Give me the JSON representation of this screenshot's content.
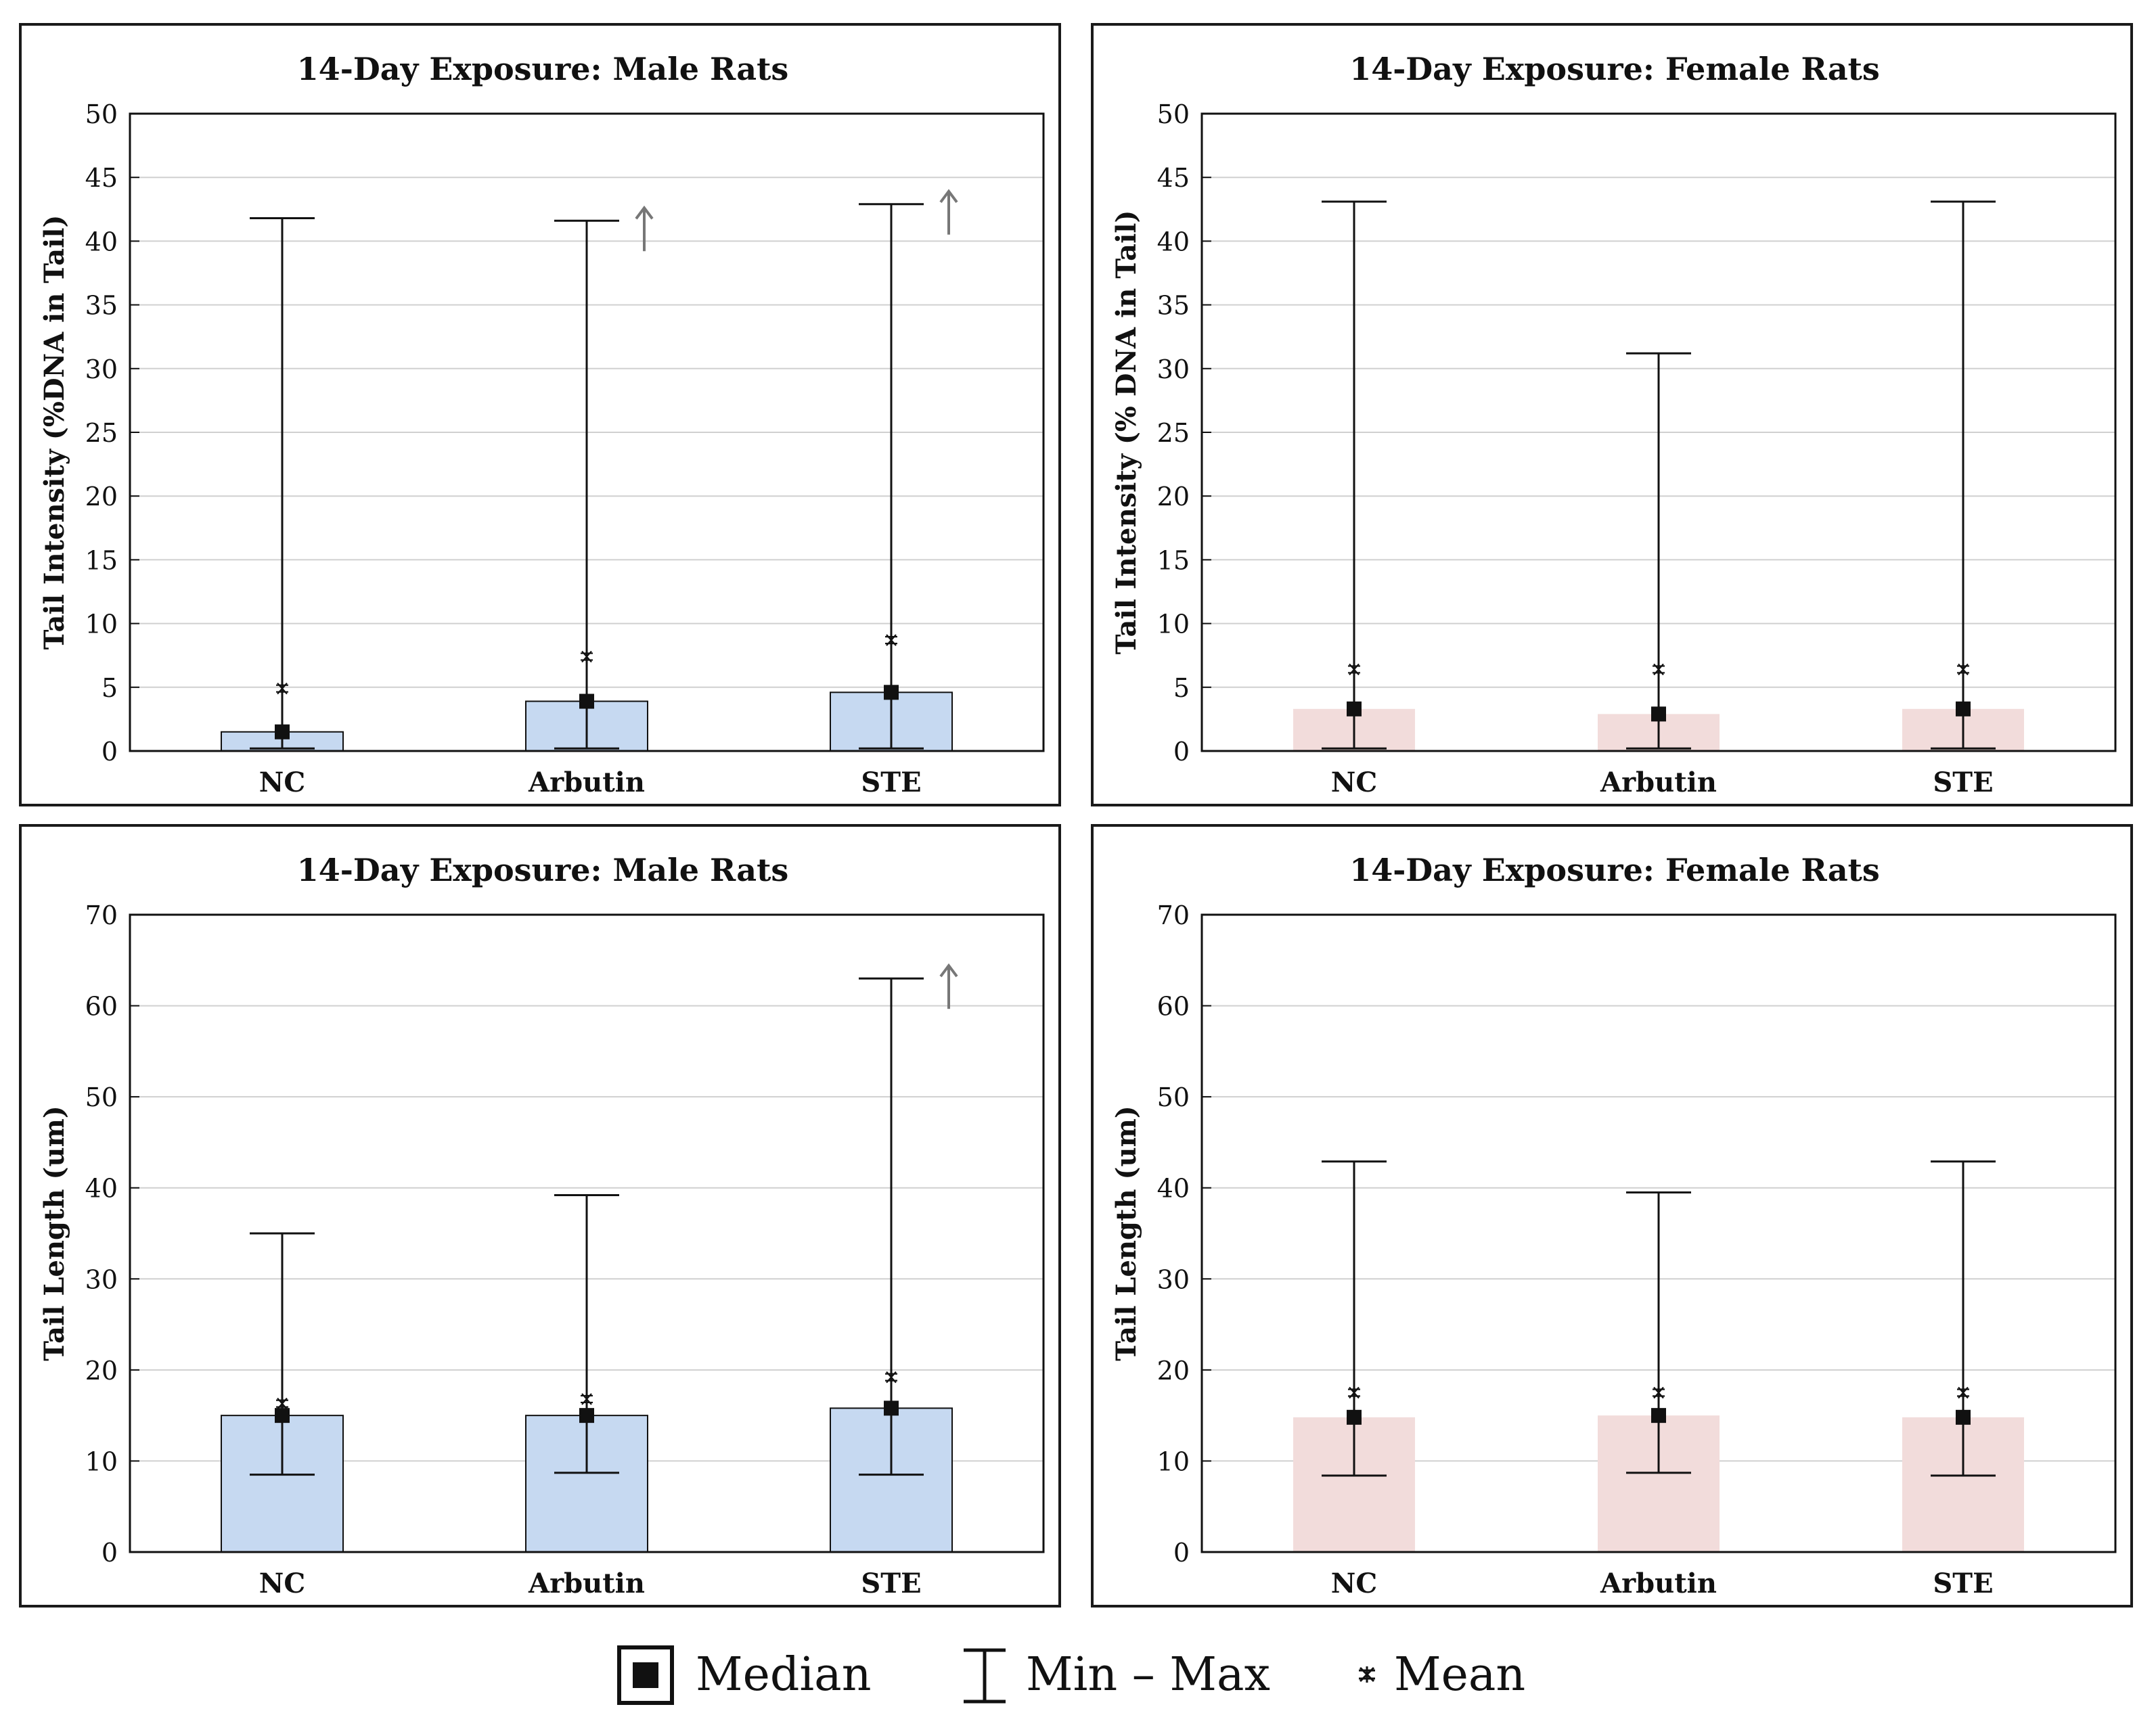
{
  "style": {
    "male_fill": "#c6d9f1",
    "female_fill": "#f2dcdb",
    "grid_color": "#d0d0d0",
    "ink": "#111111",
    "arrow_color": "#777777"
  },
  "legend": {
    "median": "Median",
    "minmax": "Min – Max",
    "mean": "Mean"
  },
  "chart_data": [
    {
      "type": "bar",
      "title": "14-Day Exposure: Male Rats",
      "xlabel": "",
      "ylabel": "Tail Intensity (%DNA in Tail)",
      "ylim": [
        0,
        50
      ],
      "yticks": [
        0,
        5,
        10,
        15,
        20,
        25,
        30,
        35,
        40,
        45,
        50
      ],
      "categories": [
        "NC",
        "Arbutin",
        "STE"
      ],
      "sex": "male",
      "median": [
        1.5,
        3.9,
        4.6
      ],
      "min": [
        0.2,
        0.2,
        0.2
      ],
      "max": [
        41.8,
        41.6,
        42.9
      ],
      "mean": [
        4.9,
        7.4,
        8.7
      ],
      "arrow": [
        false,
        true,
        true
      ]
    },
    {
      "type": "bar",
      "title": "14-Day Exposure: Female Rats",
      "xlabel": "",
      "ylabel": "Tail Intensity (% DNA in Tail)",
      "ylim": [
        0,
        50
      ],
      "yticks": [
        0,
        5,
        10,
        15,
        20,
        25,
        30,
        35,
        40,
        45,
        50
      ],
      "categories": [
        "NC",
        "Arbutin",
        "STE"
      ],
      "sex": "female",
      "median": [
        3.3,
        2.9,
        3.3
      ],
      "min": [
        0.2,
        0.2,
        0.2
      ],
      "max": [
        43.1,
        31.2,
        43.1
      ],
      "mean": [
        6.4,
        6.4,
        6.4
      ],
      "arrow": [
        false,
        false,
        false
      ]
    },
    {
      "type": "bar",
      "title": "14-Day Exposure: Male Rats",
      "xlabel": "",
      "ylabel": "Tail Length (um)",
      "ylim": [
        0,
        70
      ],
      "yticks": [
        0,
        10,
        20,
        30,
        40,
        50,
        60,
        70
      ],
      "categories": [
        "NC",
        "Arbutin",
        "STE"
      ],
      "sex": "male",
      "median": [
        15.0,
        15.0,
        15.8
      ],
      "min": [
        8.5,
        8.7,
        8.5
      ],
      "max": [
        35.0,
        39.2,
        63.0
      ],
      "mean": [
        16.3,
        16.8,
        19.2
      ],
      "arrow": [
        false,
        false,
        true
      ]
    },
    {
      "type": "bar",
      "title": "14-Day Exposure: Female Rats",
      "xlabel": "",
      "ylabel": "Tail Length (um)",
      "ylim": [
        0,
        70
      ],
      "yticks": [
        0,
        10,
        20,
        30,
        40,
        50,
        60,
        70
      ],
      "categories": [
        "NC",
        "Arbutin",
        "STE"
      ],
      "sex": "female",
      "median": [
        14.8,
        15.0,
        14.8
      ],
      "min": [
        8.4,
        8.7,
        8.4
      ],
      "max": [
        42.9,
        39.5,
        42.9
      ],
      "mean": [
        17.5,
        17.5,
        17.5
      ],
      "arrow": [
        false,
        false,
        false
      ]
    }
  ]
}
